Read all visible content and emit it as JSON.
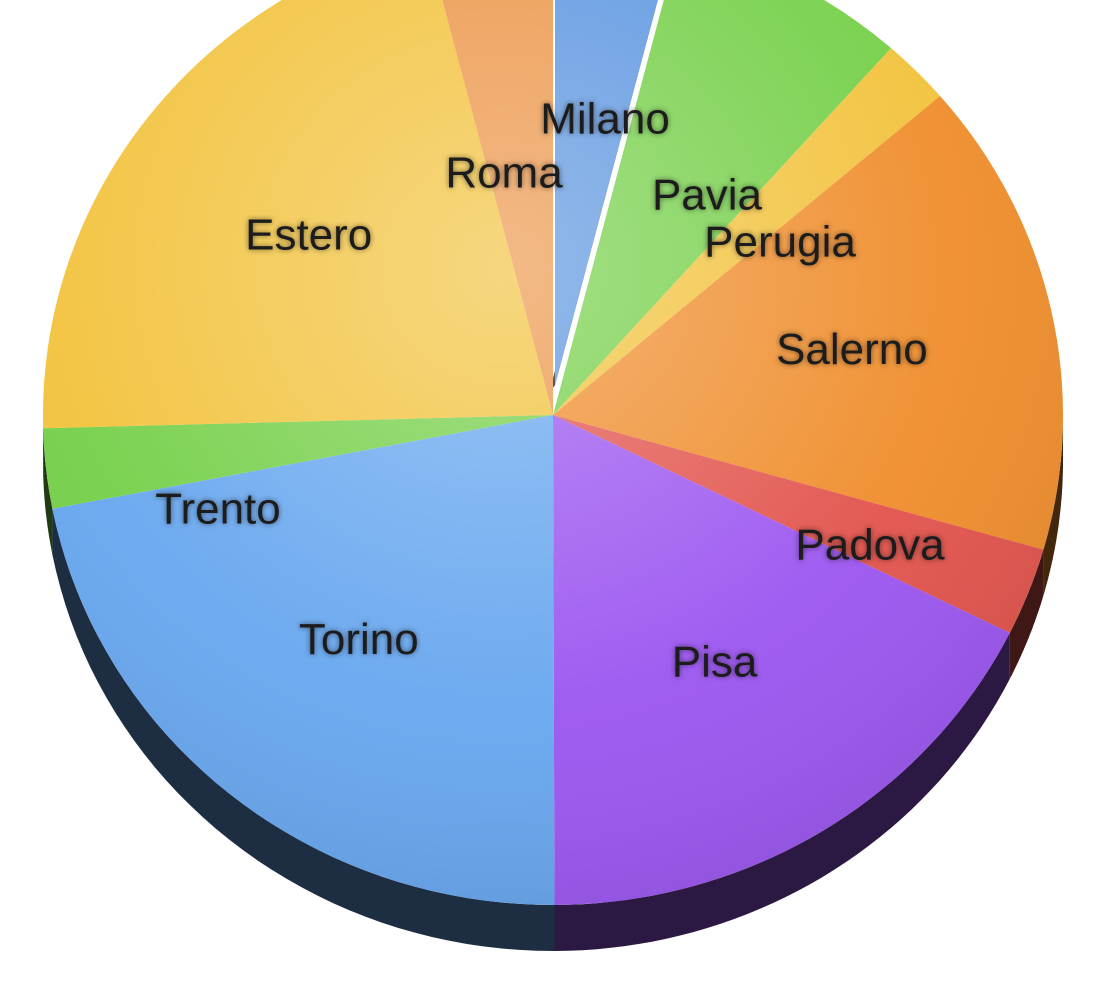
{
  "chart_data": {
    "type": "pie",
    "title": "",
    "style": "3d-exploded",
    "exploded_slice": "Milano",
    "slices": [
      {
        "label": "Milano",
        "value": 4.4,
        "color": "#5b95e0"
      },
      {
        "label": "Pavia",
        "value": 8.3,
        "color": "#74cf47"
      },
      {
        "label": "Perugia",
        "value": 2.4,
        "color": "#f2c23b"
      },
      {
        "label": "Salerno",
        "value": 17.3,
        "color": "#ef8c2a"
      },
      {
        "label": "Padova",
        "value": 3.2,
        "color": "#e2524b"
      },
      {
        "label": "Pisa",
        "value": 19.4,
        "color": "#9b55f0"
      },
      {
        "label": "Torino",
        "value": 24.2,
        "color": "#66a6ef"
      },
      {
        "label": "Trento",
        "value": 2.9,
        "color": "#74cf47"
      },
      {
        "label": "Estero",
        "value": 23.6,
        "color": "#f2c23b"
      },
      {
        "label": "Roma",
        "value": 4.4,
        "color": "#ec9547"
      }
    ]
  }
}
